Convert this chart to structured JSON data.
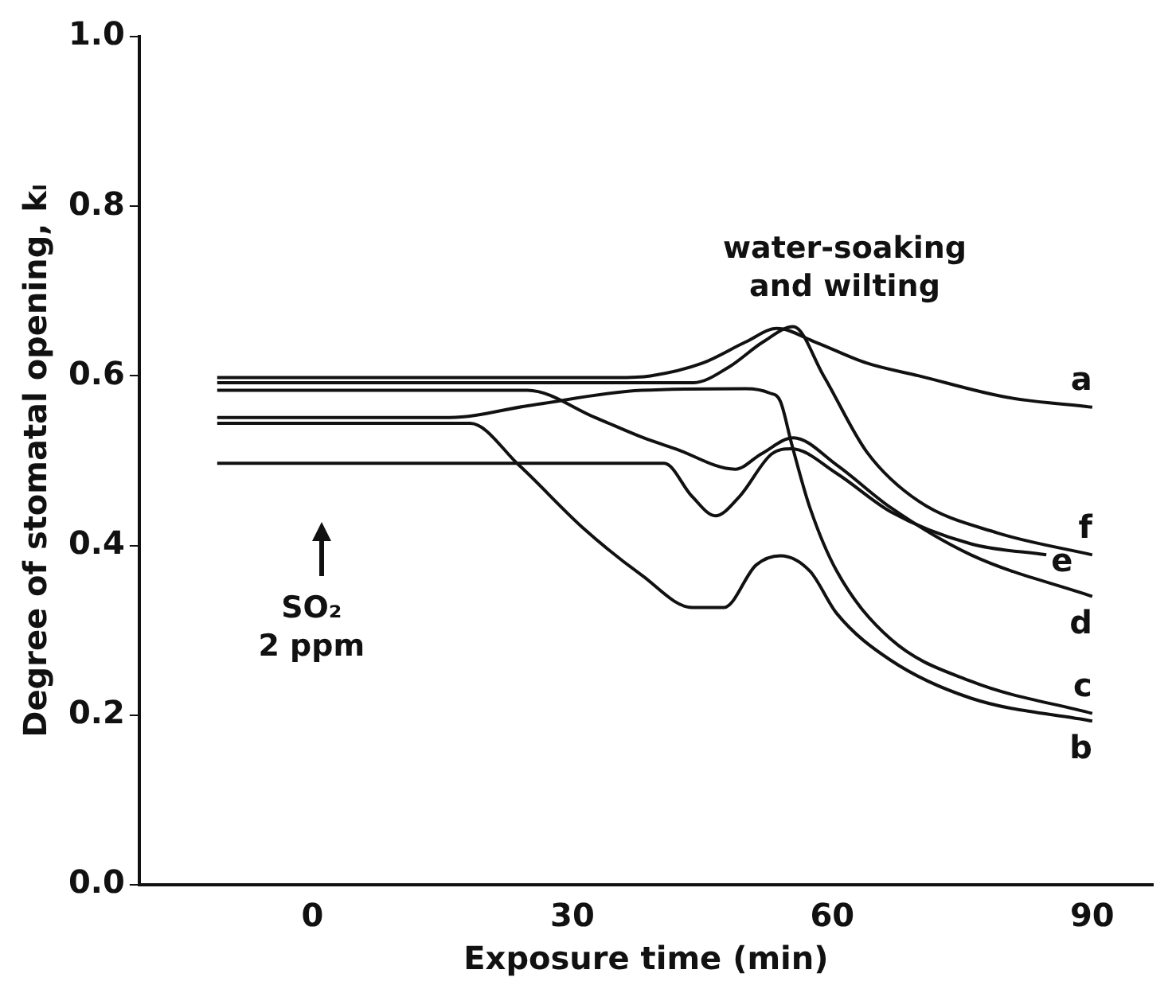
{
  "chart_data": {
    "type": "line",
    "xlabel": "Exposure time (min)",
    "ylabel": "Degree of stomatal opening, kₗ",
    "xlim": [
      -20,
      97
    ],
    "ylim": [
      0,
      1
    ],
    "xticks": [
      0,
      30,
      60,
      90
    ],
    "yticks": [
      {
        "value": 0,
        "label": "0.0"
      },
      {
        "value": 0.2,
        "label": "0.2"
      },
      {
        "value": 0.4,
        "label": "0.4"
      },
      {
        "value": 0.6,
        "label": "0.6"
      },
      {
        "value": 0.8,
        "label": "0.8"
      },
      {
        "value": 1,
        "label": "1.0"
      }
    ],
    "grid": false,
    "legend": false,
    "marker": "none",
    "line_style": "solid",
    "annotations": [
      {
        "text": "water-soaking\nand wilting",
        "x": 55,
        "y": 0.66
      },
      "SO₂\n2 ppm"
    ],
    "series": [
      {
        "name": "a",
        "color": "#111111",
        "x": [
          -11,
          35,
          39,
          45,
          50,
          53.6,
          58,
          64,
          70,
          80,
          90
        ],
        "values": [
          0.598,
          0.598,
          0.6,
          0.615,
          0.64,
          0.656,
          0.64,
          0.615,
          0.6,
          0.575,
          0.563
        ]
      },
      {
        "name": "b",
        "color": "#111111",
        "x": [
          -11,
          18.2,
          23.8,
          31.3,
          38,
          43.8,
          47.5,
          51.2,
          54,
          57.4,
          60.5,
          66.7,
          76,
          90
        ],
        "values": [
          0.544,
          0.544,
          0.495,
          0.42,
          0.365,
          0.327,
          0.327,
          0.377,
          0.388,
          0.37,
          0.32,
          0.265,
          0.22,
          0.193
        ]
      },
      {
        "name": "c",
        "color": "#111111",
        "x": [
          -11,
          15.8,
          25,
          38,
          50,
          52.7,
          54,
          55.3,
          57.4,
          60.5,
          66.7,
          76,
          90
        ],
        "values": [
          0.551,
          0.551,
          0.565,
          0.583,
          0.585,
          0.58,
          0.57,
          0.52,
          0.445,
          0.37,
          0.29,
          0.24,
          0.202
        ]
      },
      {
        "name": "d",
        "color": "#111111",
        "x": [
          -11,
          24.8,
          32.6,
          38.2,
          41.9,
          48.8,
          51.8,
          55.5,
          60.5,
          66.7,
          76,
          90
        ],
        "values": [
          0.583,
          0.583,
          0.551,
          0.527,
          0.514,
          0.49,
          0.508,
          0.527,
          0.495,
          0.445,
          0.389,
          0.34
        ]
      },
      {
        "name": "e",
        "color": "#111111",
        "x": [
          -11,
          40.6,
          43.8,
          46.5,
          49.3,
          53,
          55.3,
          60.5,
          66.7,
          76,
          84.7
        ],
        "values": [
          0.497,
          0.497,
          0.458,
          0.435,
          0.458,
          0.508,
          0.514,
          0.485,
          0.44,
          0.402,
          0.389
        ]
      },
      {
        "name": "f",
        "color": "#111111",
        "x": [
          -11,
          44,
          48,
          52,
          55.5,
          59,
          64,
          70,
          79,
          90
        ],
        "values": [
          0.592,
          0.592,
          0.61,
          0.64,
          0.658,
          0.6,
          0.51,
          0.452,
          0.415,
          0.389
        ]
      }
    ]
  }
}
